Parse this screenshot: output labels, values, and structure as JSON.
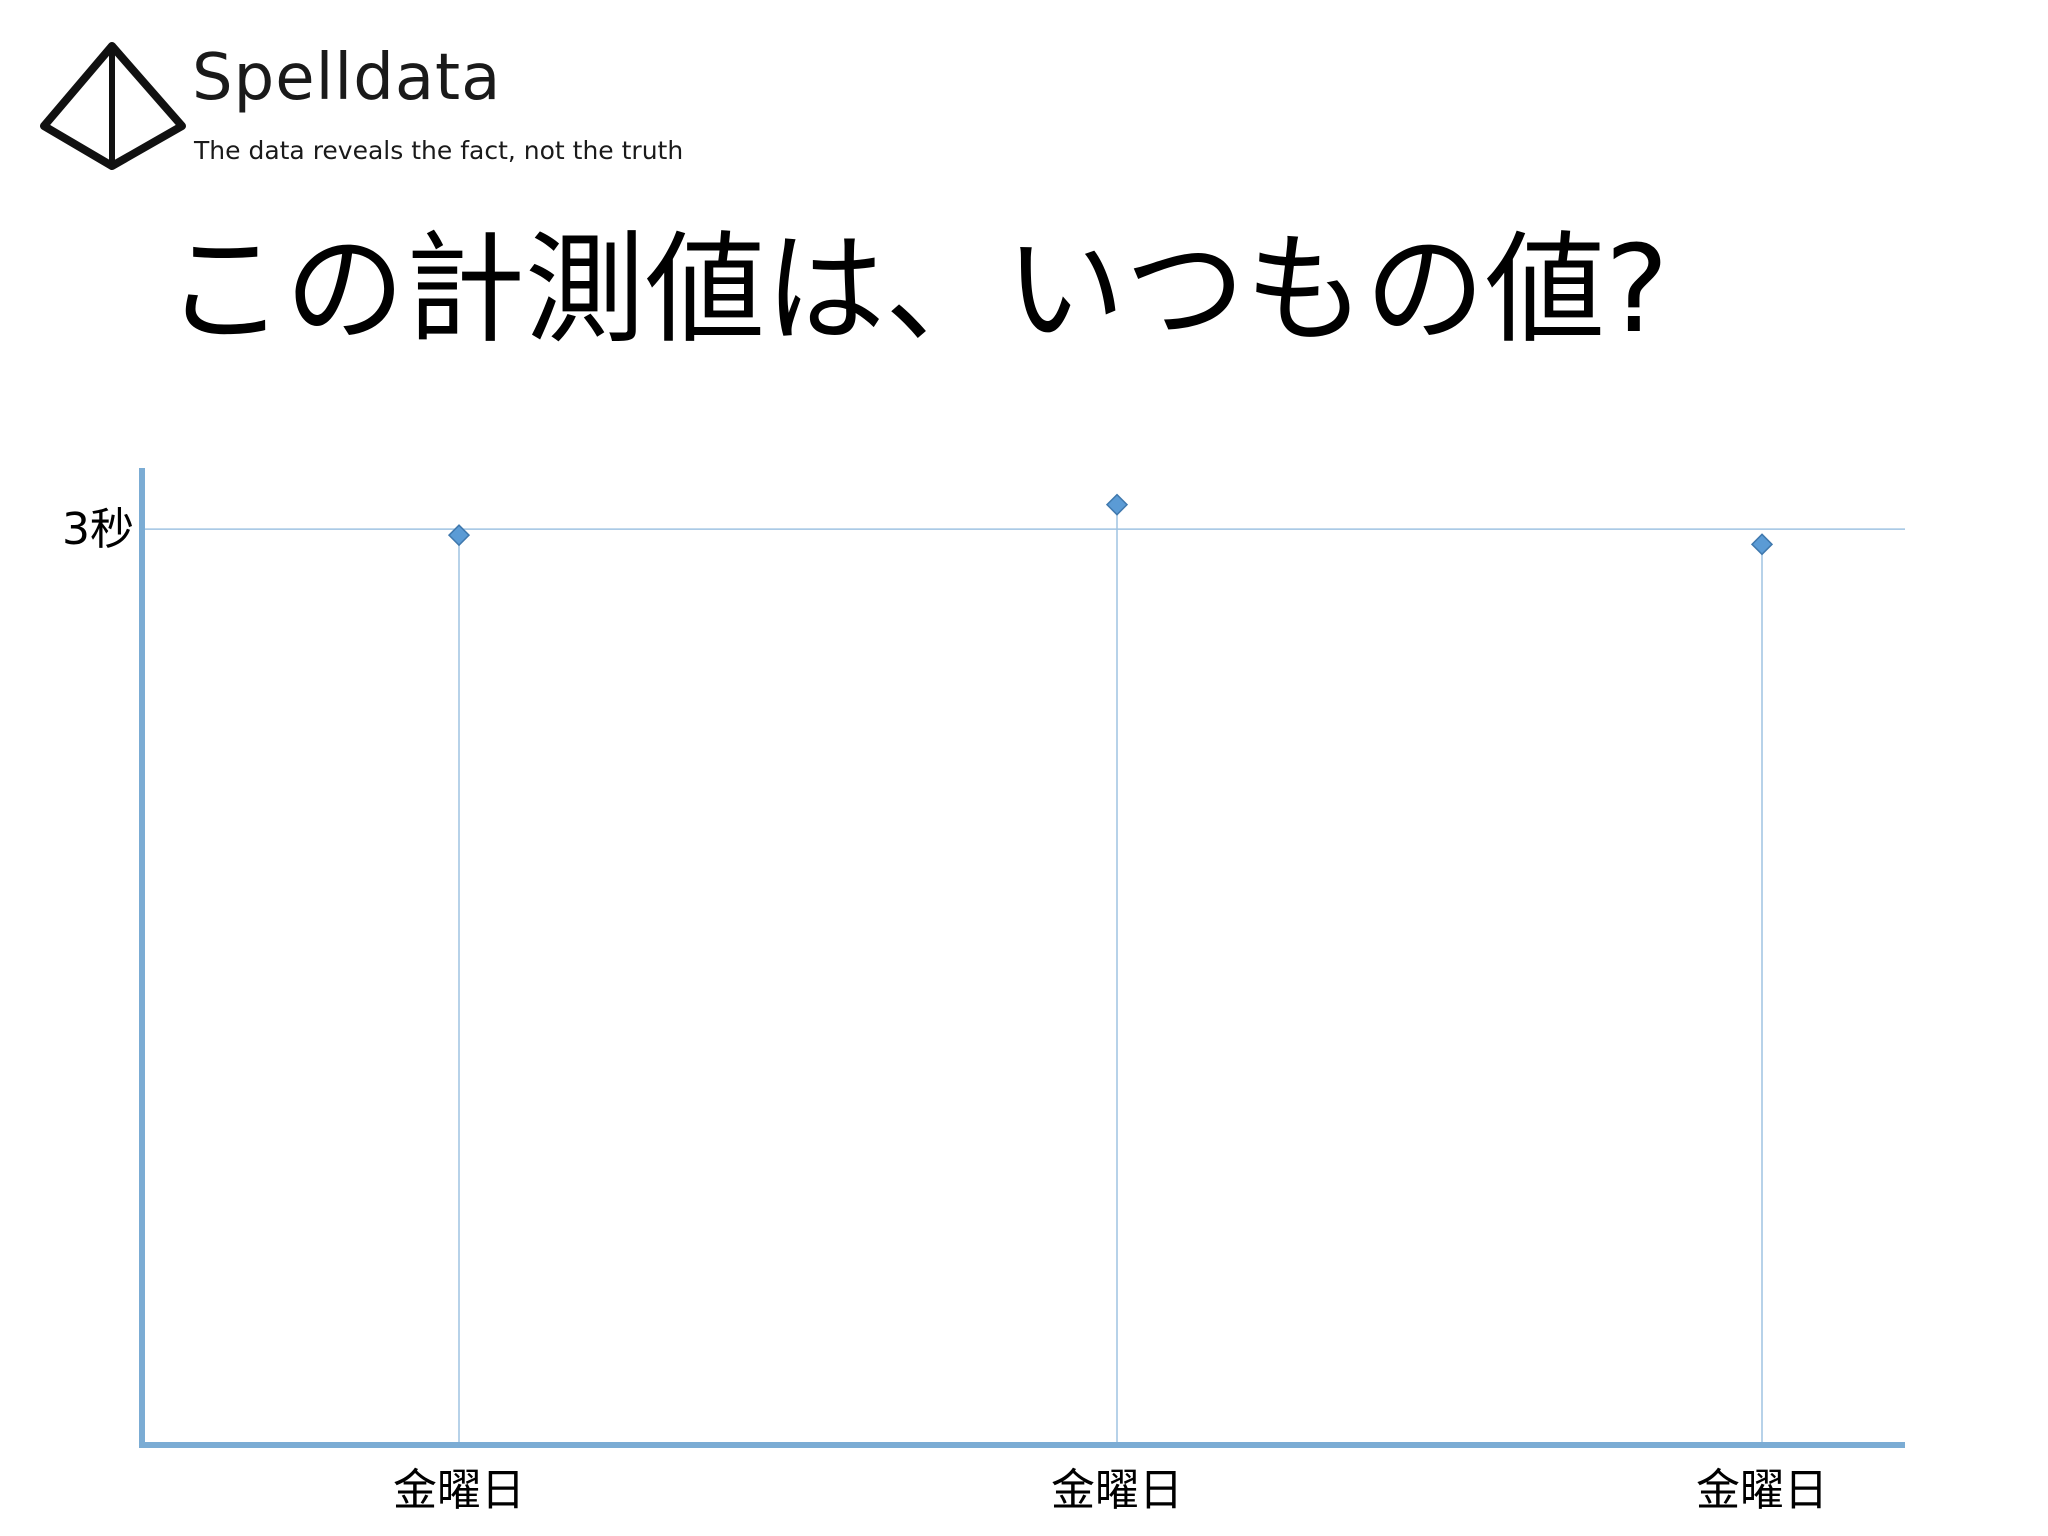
{
  "logo": {
    "name": "Spelldata",
    "tagline": "The data reveals the fact, not the truth"
  },
  "page_title": "この計測値は、いつもの値?",
  "colors": {
    "axis": "#7bacd4",
    "grid": "#9fc3e2",
    "marker_fill": "#5b9bd5",
    "marker_stroke": "#3f78ad"
  },
  "chart_data": {
    "type": "scatter",
    "categories": [
      "金曜日",
      "金曜日",
      "金曜日"
    ],
    "series": [
      {
        "values": [
          2.98,
          3.08,
          2.95
        ]
      }
    ],
    "ylim": [
      0,
      3.2
    ],
    "yticks": [
      {
        "value": 3,
        "label": "3秒"
      }
    ],
    "marker": "diamond",
    "drop_lines": true,
    "grid": true,
    "legend": "none"
  }
}
